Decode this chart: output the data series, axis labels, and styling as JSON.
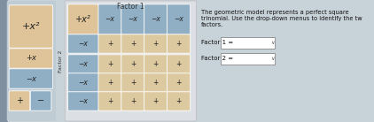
{
  "bg_color": "#cdd5db",
  "left_panel_bg": "#c2cdd5",
  "tile_colors": {
    "x2_peach": "#dfc49a",
    "x_blue": "#91afc4",
    "plus_peach": "#ddc9a0",
    "minus_blue": "#91afc4"
  },
  "factor1_label": "Factor 1",
  "factor2_label": "Factor 2",
  "description_line1": "The geometric model represents a perfect square",
  "description_line2": "trinomial. Use the drop-down menus to identify the tw",
  "description_line3": "factors.",
  "factor1_text": "Factor 1 =",
  "factor2_text": "Factor 2 =",
  "overall_bg": "#c8d2d9",
  "grid_area_bg": "#d8dde2",
  "right_area_bg": "#c8d2d9",
  "white": "#ffffff",
  "border_color": "#aaaaaa",
  "text_dark": "#222222",
  "text_mid": "#444444"
}
